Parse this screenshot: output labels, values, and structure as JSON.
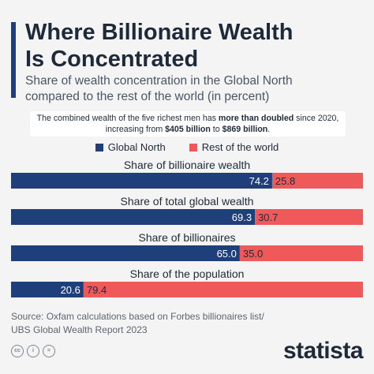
{
  "header": {
    "title_line1": "Where Billionaire Wealth",
    "title_line2": "Is Concentrated",
    "subtitle_line1": "Share of wealth concentration in the Global North",
    "subtitle_line2": "compared to the rest of the world (in percent)"
  },
  "callout": {
    "part1": "The combined wealth of the five richest men has ",
    "emph1": "more than doubled",
    "part2": " since 2020,",
    "part3": "increasing from ",
    "emph2": "$405 billion",
    "part4": " to ",
    "emph3": "$869 billion",
    "part5": "."
  },
  "colors": {
    "global_north": "#1f3f7a",
    "rest": "#f0595a",
    "title_bar": "#1f3f7a"
  },
  "chart_data": {
    "type": "bar",
    "orientation": "horizontal",
    "stacked": true,
    "categories": [
      "Share of billionaire wealth",
      "Share of total global wealth",
      "Share of billionaires",
      "Share of the population"
    ],
    "series": [
      {
        "name": "Global North",
        "values": [
          74.2,
          69.3,
          65.0,
          20.6
        ],
        "labels": [
          "74.2",
          "69.3",
          "65.0",
          "20.6"
        ]
      },
      {
        "name": "Rest of the world",
        "values": [
          25.8,
          30.7,
          35.0,
          79.4
        ],
        "labels": [
          "25.8",
          "30.7",
          "35.0",
          "79.4"
        ]
      }
    ],
    "xlim": [
      0,
      100
    ],
    "legend": "top-center"
  },
  "source": {
    "line1": "Source: Oxfam calculations based on Forbes billionaires list/",
    "line2": "UBS Global Wealth Report 2023"
  },
  "footer": {
    "cc": "cc",
    "by": "i",
    "nd": "=",
    "brand": "statista"
  }
}
